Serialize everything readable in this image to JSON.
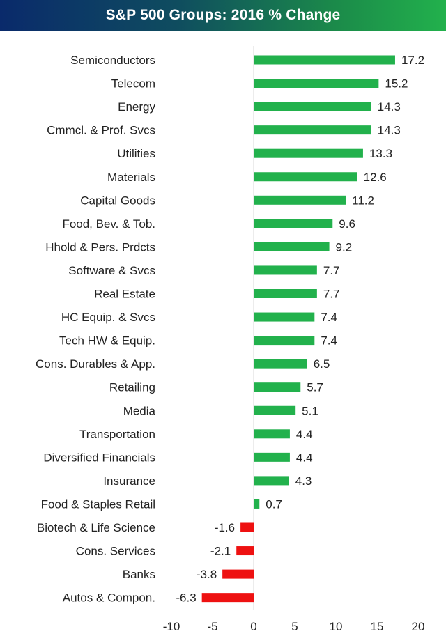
{
  "title": "S&P 500 Groups: 2016 % Change",
  "colors": {
    "positive": "#22b14c",
    "negative": "#ee1111",
    "title_start": "#0a2a6b",
    "title_end": "#22b14c"
  },
  "chart_data": {
    "type": "bar",
    "orientation": "horizontal",
    "title": "S&P 500 Groups: 2016 % Change",
    "xlabel": "",
    "ylabel": "",
    "xlim": [
      -10,
      20
    ],
    "xticks": [
      -10,
      -5,
      0,
      5,
      10,
      15,
      20
    ],
    "grid": false,
    "categories": [
      "Semiconductors",
      "Telecom",
      "Energy",
      "Cmmcl. & Prof. Svcs",
      "Utilities",
      "Materials",
      "Capital Goods",
      "Food, Bev. & Tob.",
      "Hhold & Pers. Prdcts",
      "Software & Svcs",
      "Real Estate",
      "HC Equip. & Svcs",
      "Tech HW & Equip.",
      "Cons. Durables & App.",
      "Retailing",
      "Media",
      "Transportation",
      "Diversified Financials",
      "Insurance",
      "Food & Staples Retail",
      "Biotech & Life Science",
      "Cons. Services",
      "Banks",
      "Autos & Compon."
    ],
    "values": [
      17.2,
      15.2,
      14.3,
      14.3,
      13.3,
      12.6,
      11.2,
      9.6,
      9.2,
      7.7,
      7.7,
      7.4,
      7.4,
      6.5,
      5.7,
      5.1,
      4.4,
      4.4,
      4.3,
      0.7,
      -1.6,
      -2.1,
      -3.8,
      -6.3
    ],
    "value_labels": [
      "17.2",
      "15.2",
      "14.3",
      "14.3",
      "13.3",
      "12.6",
      "11.2",
      "9.6",
      "9.2",
      "7.7",
      "7.7",
      "7.4",
      "7.4",
      "6.5",
      "5.7",
      "5.1",
      "4.4",
      "4.4",
      "4.3",
      "0.7",
      "-1.6",
      "-2.1",
      "-3.8",
      "-6.3"
    ]
  }
}
